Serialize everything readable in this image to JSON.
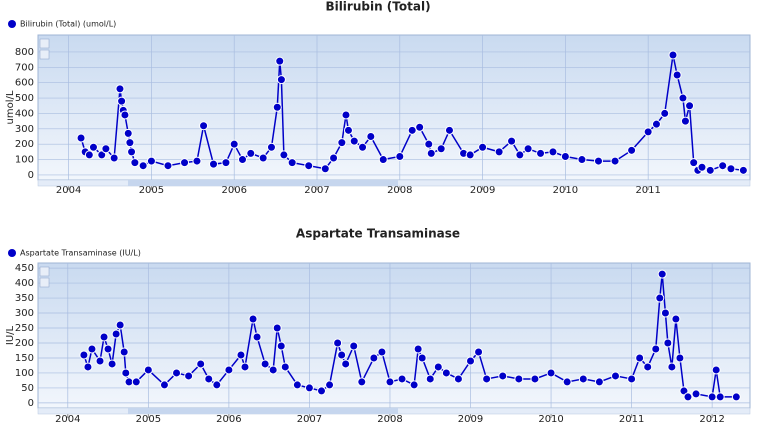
{
  "chart_data": [
    {
      "type": "line",
      "title": "Bilirubin (Total)",
      "ylabel": "umol/L",
      "x": [
        2004.15,
        2004.2,
        2004.25,
        2004.3,
        2004.4,
        2004.45,
        2004.55,
        2004.62,
        2004.64,
        2004.66,
        2004.68,
        2004.72,
        2004.74,
        2004.76,
        2004.8,
        2004.9,
        2005.0,
        2005.2,
        2005.4,
        2005.55,
        2005.63,
        2005.75,
        2005.9,
        2006.0,
        2006.1,
        2006.2,
        2006.35,
        2006.45,
        2006.52,
        2006.55,
        2006.57,
        2006.6,
        2006.7,
        2006.9,
        2007.1,
        2007.2,
        2007.3,
        2007.35,
        2007.38,
        2007.45,
        2007.55,
        2007.65,
        2007.8,
        2008.0,
        2008.15,
        2008.24,
        2008.35,
        2008.38,
        2008.5,
        2008.6,
        2008.77,
        2008.85,
        2009.0,
        2009.2,
        2009.35,
        2009.45,
        2009.55,
        2009.7,
        2009.85,
        2010.0,
        2010.2,
        2010.4,
        2010.6,
        2010.8,
        2011.0,
        2011.1,
        2011.2,
        2011.3,
        2011.35,
        2011.42,
        2011.45,
        2011.5,
        2011.55,
        2011.6,
        2011.65,
        2011.75,
        2011.9,
        2012.0,
        2012.15
      ],
      "series": [
        {
          "name": "Bilirubin (Total) (umol/L)",
          "color": "#0000c8",
          "values": [
            240,
            150,
            130,
            180,
            130,
            170,
            110,
            560,
            480,
            420,
            390,
            270,
            210,
            150,
            80,
            60,
            90,
            60,
            80,
            90,
            320,
            70,
            80,
            200,
            100,
            140,
            110,
            180,
            440,
            740,
            620,
            130,
            80,
            60,
            40,
            110,
            210,
            390,
            290,
            220,
            180,
            250,
            100,
            120,
            290,
            310,
            200,
            140,
            170,
            290,
            140,
            130,
            180,
            150,
            220,
            130,
            170,
            140,
            150,
            120,
            100,
            90,
            90,
            160,
            280,
            330,
            400,
            780,
            650,
            500,
            350,
            450,
            80,
            30,
            50,
            30,
            60,
            40,
            30
          ]
        }
      ],
      "xlim": [
        2003.63,
        2012.23
      ],
      "xticks": [
        2004,
        2005,
        2006,
        2007,
        2008,
        2009,
        2010,
        2011
      ],
      "ylim": [
        -33,
        910
      ],
      "yticks": [
        0,
        100,
        200,
        300,
        400,
        500,
        600,
        700,
        800
      ],
      "grid": true
    },
    {
      "type": "line",
      "title": "Aspartate Transaminase",
      "ylabel": "IU/L",
      "x": [
        2004.2,
        2004.25,
        2004.3,
        2004.4,
        2004.45,
        2004.5,
        2004.55,
        2004.6,
        2004.65,
        2004.7,
        2004.72,
        2004.76,
        2004.85,
        2005.0,
        2005.2,
        2005.35,
        2005.5,
        2005.65,
        2005.75,
        2005.85,
        2006.0,
        2006.15,
        2006.2,
        2006.3,
        2006.35,
        2006.45,
        2006.55,
        2006.6,
        2006.65,
        2006.7,
        2006.85,
        2007.0,
        2007.15,
        2007.25,
        2007.35,
        2007.4,
        2007.45,
        2007.55,
        2007.65,
        2007.8,
        2007.9,
        2008.0,
        2008.15,
        2008.3,
        2008.35,
        2008.4,
        2008.5,
        2008.6,
        2008.7,
        2008.85,
        2009.0,
        2009.1,
        2009.2,
        2009.4,
        2009.6,
        2009.8,
        2010.0,
        2010.2,
        2010.4,
        2010.6,
        2010.8,
        2011.0,
        2011.1,
        2011.2,
        2011.3,
        2011.35,
        2011.38,
        2011.42,
        2011.45,
        2011.5,
        2011.55,
        2011.6,
        2011.65,
        2011.7,
        2011.8,
        2012.0,
        2012.05,
        2012.1,
        2012.3
      ],
      "series": [
        {
          "name": "Aspartate Transaminase (IU/L)",
          "color": "#0000c8",
          "values": [
            160,
            120,
            180,
            140,
            220,
            180,
            130,
            230,
            260,
            170,
            100,
            70,
            70,
            110,
            60,
            100,
            90,
            130,
            80,
            60,
            110,
            160,
            120,
            280,
            220,
            130,
            110,
            250,
            190,
            120,
            60,
            50,
            40,
            60,
            200,
            160,
            130,
            190,
            70,
            150,
            170,
            70,
            80,
            60,
            180,
            150,
            80,
            120,
            100,
            80,
            140,
            170,
            80,
            90,
            80,
            80,
            100,
            70,
            80,
            70,
            90,
            80,
            150,
            120,
            180,
            350,
            430,
            300,
            200,
            120,
            280,
            150,
            40,
            20,
            30,
            20,
            110,
            20,
            20
          ]
        }
      ],
      "xlim": [
        2003.63,
        2012.47
      ],
      "xticks": [
        2004,
        2005,
        2006,
        2007,
        2008,
        2009,
        2010,
        2011,
        2012
      ],
      "ylim": [
        -17,
        467
      ],
      "yticks": [
        0,
        50,
        100,
        150,
        200,
        250,
        300,
        350,
        400,
        450
      ],
      "grid": true
    }
  ]
}
